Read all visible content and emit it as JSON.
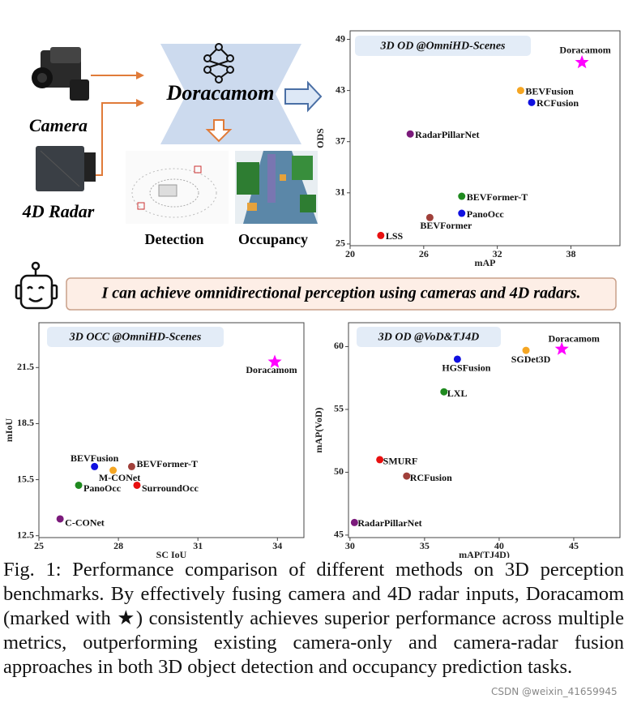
{
  "diagram": {
    "model": "Doracamom",
    "inputs": [
      "Camera",
      "4D Radar"
    ],
    "outputs": [
      "Detection",
      "Occupancy"
    ],
    "speech": "I can achieve omnidirectional perception using cameras and 4D radars."
  },
  "chart_data": [
    {
      "type": "scatter",
      "title": "3D OD @OmniHD-Scenes",
      "x_label": "mAP",
      "y_label": "ODS",
      "point_labels": [
        "Doracamom",
        "BEVFusion",
        "RCFusion",
        "RadarPillarNet",
        "BEVFormer-T",
        "PanoOcc",
        "BEVFormer",
        "LSS"
      ],
      "x": [
        38.9,
        33.9,
        34.8,
        24.9,
        29.1,
        29.1,
        26.5,
        22.5
      ],
      "values": [
        46.3,
        43.0,
        41.6,
        37.9,
        30.6,
        28.6,
        28.1,
        26.0
      ],
      "colors": [
        "#ff00ff",
        "#f5a623",
        "#1010e0",
        "#7b1a7b",
        "#1f8a1f",
        "#1010e0",
        "#a0403a",
        "#e81010"
      ],
      "markers": [
        "star",
        "circle",
        "circle",
        "circle",
        "circle",
        "circle",
        "circle",
        "circle"
      ],
      "xlim": [
        20,
        42
      ],
      "ylim": [
        24.8,
        50
      ],
      "xticks": [
        20,
        26,
        32,
        38
      ],
      "yticks": [
        25,
        31,
        37,
        43,
        49
      ]
    },
    {
      "type": "scatter",
      "title": "3D OCC @OmniHD-Scenes",
      "x_label": "SC IoU",
      "y_label": "mIoU",
      "point_labels": [
        "Doracamom",
        "BEVFusion",
        "M-CONet",
        "BEVFormer-T",
        "PanoOcc",
        "SurroundOcc",
        "C-CONet"
      ],
      "x": [
        33.9,
        27.1,
        27.8,
        28.5,
        26.5,
        28.7,
        25.8
      ],
      "values": [
        21.8,
        16.2,
        16.0,
        16.2,
        15.2,
        15.2,
        13.4
      ],
      "colors": [
        "#ff00ff",
        "#1010e0",
        "#f5a623",
        "#a0403a",
        "#1f8a1f",
        "#e81010",
        "#7b1a7b"
      ],
      "markers": [
        "star",
        "circle",
        "circle",
        "circle",
        "circle",
        "circle",
        "circle"
      ],
      "xlim": [
        25,
        35
      ],
      "ylim": [
        12.4,
        23.9
      ],
      "xticks": [
        25,
        28,
        31,
        34
      ],
      "yticks": [
        12.5,
        15.5,
        18.5,
        21.5
      ]
    },
    {
      "type": "scatter",
      "title": "3D OD @VoD&TJ4D",
      "x_label": "mAP(TJ4D)",
      "y_label": "mAP(VoD)",
      "point_labels": [
        "Doracamom",
        "SGDet3D",
        "HGSFusion",
        "LXL",
        "SMURF",
        "RCFusion",
        "RadarPillarNet"
      ],
      "x": [
        44.2,
        41.8,
        37.2,
        36.3,
        32.0,
        33.8,
        30.3
      ],
      "values": [
        59.8,
        59.7,
        59.0,
        56.4,
        51.0,
        49.7,
        46.0
      ],
      "colors": [
        "#ff00ff",
        "#f5a623",
        "#1010e0",
        "#1f8a1f",
        "#e81010",
        "#a0403a",
        "#7b1a7b"
      ],
      "markers": [
        "star",
        "circle",
        "circle",
        "circle",
        "circle",
        "circle",
        "circle"
      ],
      "xlim": [
        29.9,
        48.1
      ],
      "ylim": [
        44.8,
        61.9
      ],
      "xticks": [
        30,
        35,
        40,
        45
      ],
      "yticks": [
        45,
        50,
        55,
        60
      ]
    }
  ],
  "caption": "Fig. 1: Performance comparison of different methods on 3D perception benchmarks. By effectively fusing camera and 4D radar inputs, Doracamom (marked with ★) consistently achieves superior performance across multiple metrics, outperforming existing camera-only and camera-radar fusion approaches in both 3D object detection and occupancy prediction tasks.",
  "watermark": "CSDN @weixin_41659945"
}
